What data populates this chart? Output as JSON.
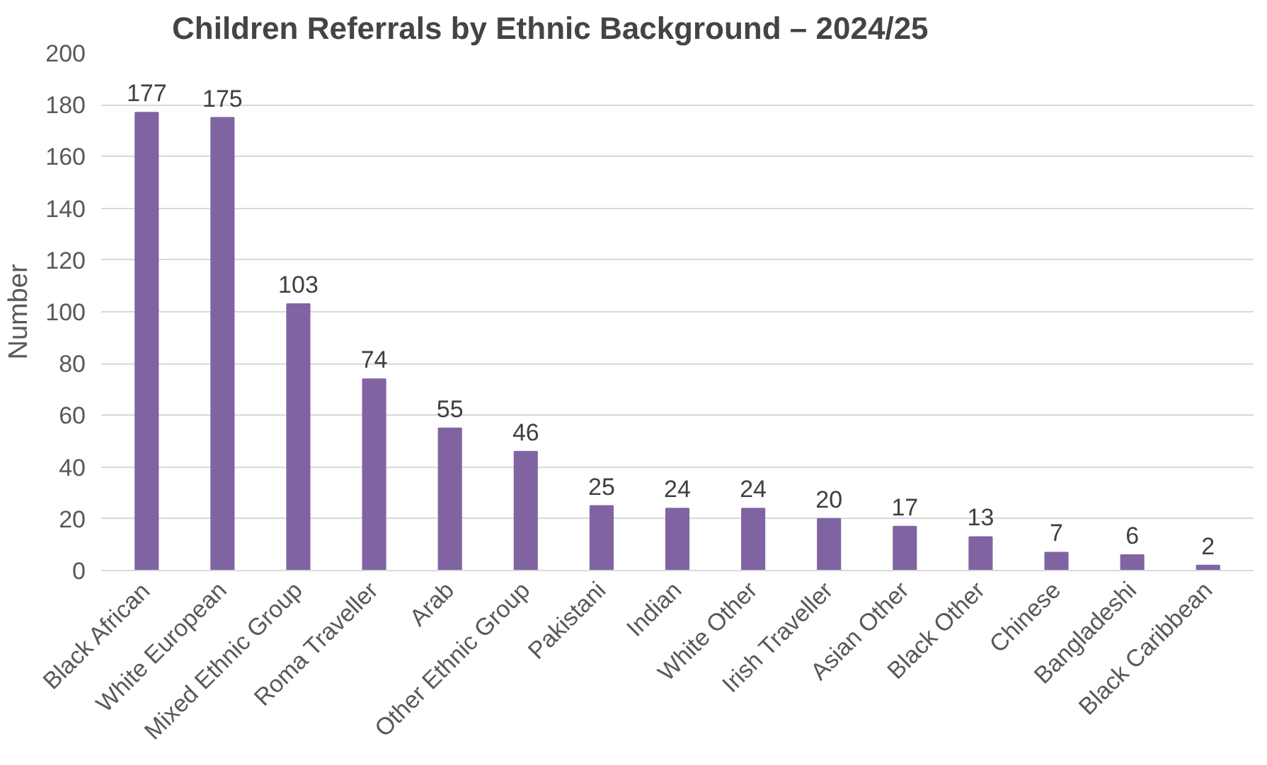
{
  "chart_data": {
    "type": "bar",
    "title": "Children Referrals by Ethnic Background – 2024/25",
    "ylabel": "Number",
    "categories": [
      "Black African",
      "White European",
      "Mixed Ethnic Group",
      "Roma Traveller",
      "Arab",
      "Other Ethnic Group",
      "Pakistani",
      "Indian",
      "White Other",
      "Irish Traveller",
      "Asian Other",
      "Black Other",
      "Chinese",
      "Bangladeshi",
      "Black Caribbean"
    ],
    "values": [
      177,
      175,
      103,
      74,
      55,
      46,
      25,
      24,
      24,
      20,
      17,
      13,
      7,
      6,
      2
    ],
    "color": "#8064a2",
    "ylim": [
      0,
      200
    ],
    "yticks": [
      0,
      20,
      40,
      60,
      80,
      100,
      120,
      140,
      160,
      180,
      200
    ],
    "grid": "y",
    "data_labels": true
  }
}
